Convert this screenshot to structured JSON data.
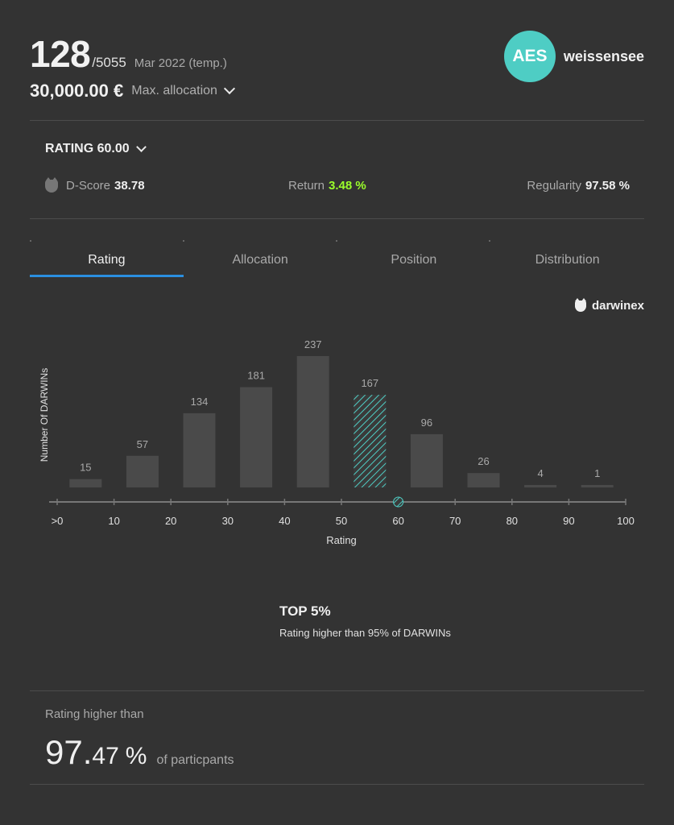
{
  "header": {
    "rank": "128",
    "rank_total": "/5055",
    "period": "Mar 2022 (temp.)",
    "allocation_amount": "30,000.00 €",
    "allocation_label": "Max. allocation",
    "avatar_initials": "AES",
    "username": "weissensee",
    "avatar_color": "#4ecdc4"
  },
  "rating_section": {
    "toggle_label": "RATING 60.00",
    "metrics": [
      {
        "label": "D-Score",
        "value": "38.78"
      },
      {
        "label": "Return",
        "value": "3.48 %"
      },
      {
        "label": "Regularity",
        "value": "97.58 %"
      }
    ]
  },
  "tabs": [
    {
      "label": "Rating",
      "active": true
    },
    {
      "label": "Allocation",
      "active": false
    },
    {
      "label": "Position",
      "active": false
    },
    {
      "label": "Distribution",
      "active": false
    }
  ],
  "brand": "darwinex",
  "chart_data": {
    "type": "bar",
    "categories": [
      "0-10",
      "10-20",
      "20-30",
      "30-40",
      "40-50",
      "50-60",
      "60-70",
      "70-80",
      "80-90",
      "90-100"
    ],
    "values": [
      15,
      57,
      134,
      181,
      237,
      167,
      96,
      26,
      4,
      1
    ],
    "highlight_index": 5,
    "highlight_marker_value": 60,
    "xlabel": "Rating",
    "ylabel": "Number Of DARWINs",
    "x_ticks": [
      ">0",
      "10",
      "20",
      "30",
      "40",
      "50",
      "60",
      "70",
      "80",
      "90",
      "100"
    ],
    "xlim": [
      0,
      100
    ],
    "ylim": [
      0,
      237
    ],
    "colors": {
      "bar": "#4a4a4a",
      "highlight": "#4ecdc4"
    }
  },
  "summary": {
    "top_title": "TOP 5%",
    "top_subtitle": "Rating higher than 95% of DARWINs",
    "higher_than_label": "Rating higher than",
    "higher_than_int": "97.",
    "higher_than_dec": "47",
    "higher_than_pct": "%",
    "higher_than_suffix": "of particpants"
  }
}
